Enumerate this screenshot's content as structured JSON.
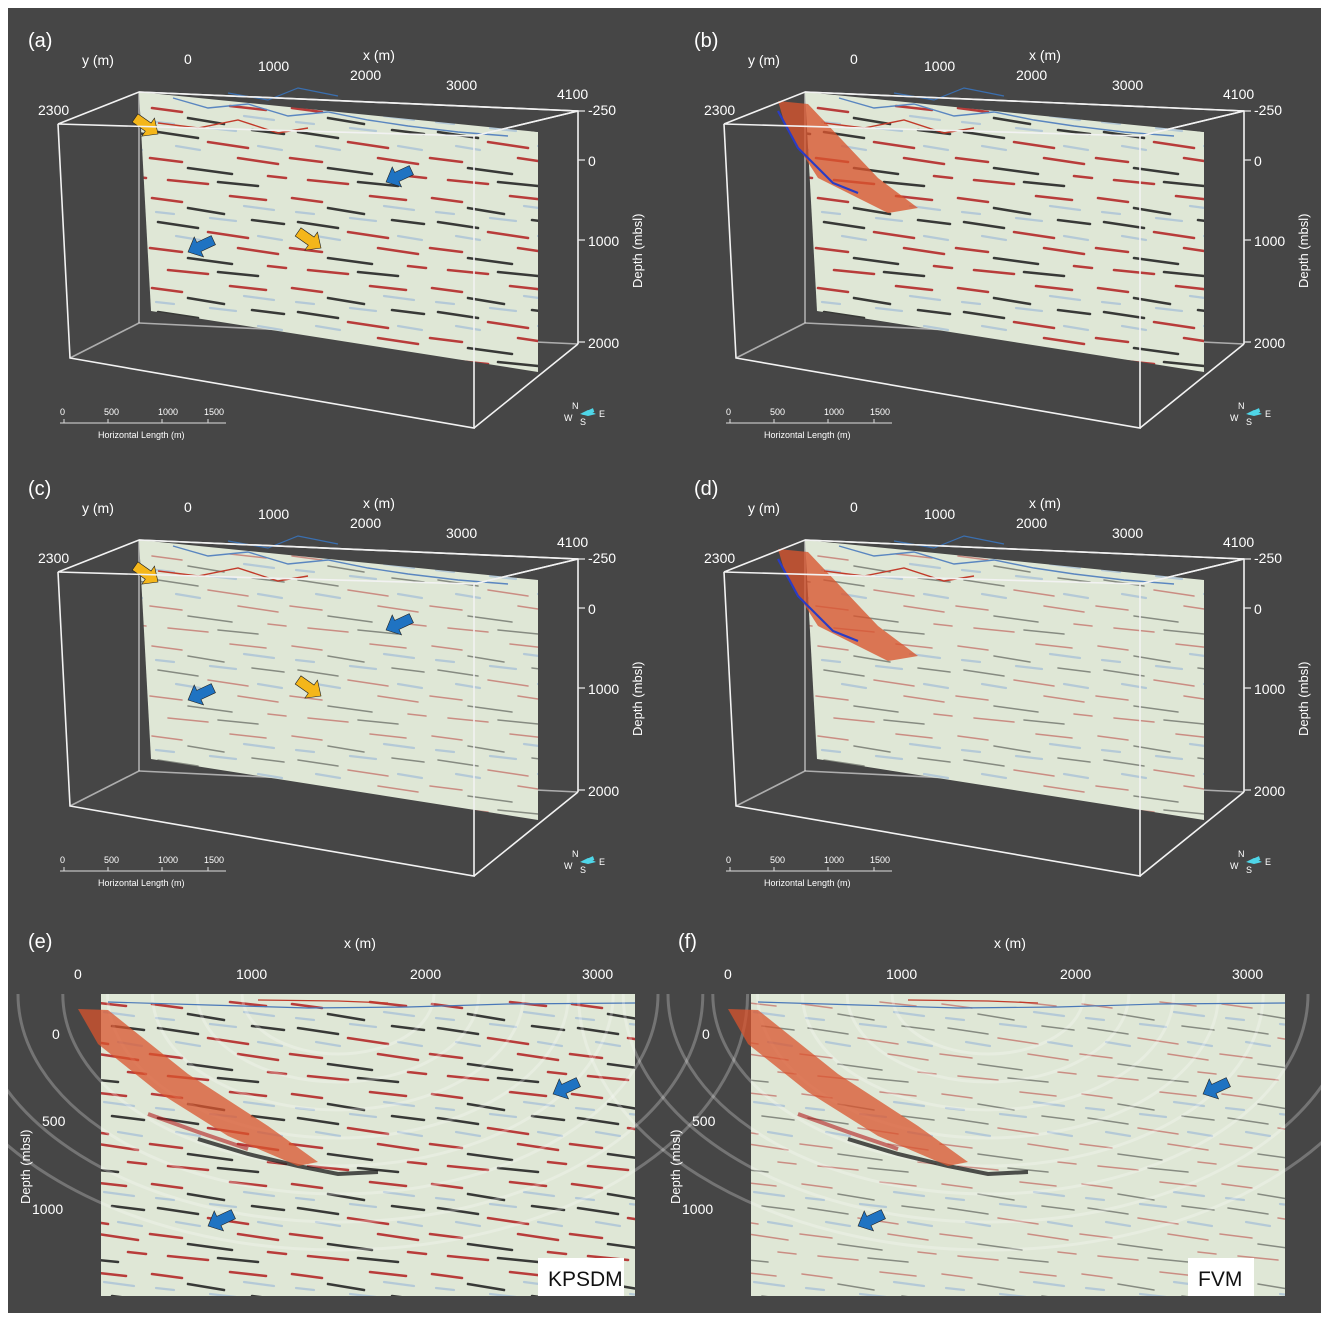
{
  "colors": {
    "background": "#464646",
    "seismic_positive": "#b21e1e",
    "seismic_negative": "#1a1a1a",
    "seismic_bg": "#dfe7d6",
    "fault_plane": "#d9542e",
    "arrow_yellow": "#f4b61a",
    "arrow_blue": "#1f73c2"
  },
  "panels3d": [
    {
      "label": "(a)",
      "y_axis": "y (m)",
      "x_axis": "x (m)",
      "depth_axis": "Depth (mbsl)",
      "x_ticks": [
        "0",
        "1000",
        "2000",
        "3000",
        "4100"
      ],
      "y_tick": "2300",
      "depth_ticks": [
        "-250",
        "0",
        "1000",
        "2000"
      ],
      "scalebar_ticks": [
        "0",
        "500",
        "1000",
        "1500"
      ],
      "scalebar_label": "Horizontal Length (m)",
      "compass": {
        "n": "N",
        "e": "E",
        "s": "S",
        "w": "W"
      },
      "fault": false,
      "arrows": true,
      "noise": "kpsdm"
    },
    {
      "label": "(b)",
      "y_axis": "y (m)",
      "x_axis": "x (m)",
      "depth_axis": "Depth (mbsl)",
      "x_ticks": [
        "0",
        "1000",
        "2000",
        "3000",
        "4100"
      ],
      "y_tick": "2300",
      "depth_ticks": [
        "-250",
        "0",
        "1000",
        "2000"
      ],
      "scalebar_ticks": [
        "0",
        "500",
        "1000",
        "1500"
      ],
      "scalebar_label": "Horizontal Length (m)",
      "compass": {
        "n": "N",
        "e": "E",
        "s": "S",
        "w": "W"
      },
      "fault": true,
      "arrows": false,
      "noise": "kpsdm"
    },
    {
      "label": "(c)",
      "y_axis": "y (m)",
      "x_axis": "x (m)",
      "depth_axis": "Depth (mbsl)",
      "x_ticks": [
        "0",
        "1000",
        "2000",
        "3000",
        "4100"
      ],
      "y_tick": "2300",
      "depth_ticks": [
        "-250",
        "0",
        "1000",
        "2000"
      ],
      "scalebar_ticks": [
        "0",
        "500",
        "1000",
        "1500"
      ],
      "scalebar_label": "Horizontal Length (m)",
      "compass": {
        "n": "N",
        "e": "E",
        "s": "S",
        "w": "W"
      },
      "fault": false,
      "arrows": true,
      "noise": "fvm"
    },
    {
      "label": "(d)",
      "y_axis": "y (m)",
      "x_axis": "x (m)",
      "depth_axis": "Depth (mbsl)",
      "x_ticks": [
        "0",
        "1000",
        "2000",
        "3000",
        "4100"
      ],
      "y_tick": "2300",
      "depth_ticks": [
        "-250",
        "0",
        "1000",
        "2000"
      ],
      "scalebar_ticks": [
        "0",
        "500",
        "1000",
        "1500"
      ],
      "scalebar_label": "Horizontal Length (m)",
      "compass": {
        "n": "N",
        "e": "E",
        "s": "S",
        "w": "W"
      },
      "fault": true,
      "arrows": false,
      "noise": "fvm"
    }
  ],
  "panels2d": [
    {
      "label": "(e)",
      "x_axis": "x (m)",
      "depth_axis": "Depth (mbsl)",
      "x_ticks": [
        "0",
        "1000",
        "2000",
        "3000"
      ],
      "depth_ticks": [
        "0",
        "500",
        "1000"
      ],
      "method": "KPSDM",
      "noise": "kpsdm"
    },
    {
      "label": "(f)",
      "x_axis": "x (m)",
      "depth_axis": "Depth (mbsl)",
      "x_ticks": [
        "0",
        "1000",
        "2000",
        "3000"
      ],
      "depth_ticks": [
        "0",
        "500",
        "1000"
      ],
      "method": "FVM",
      "noise": "fvm"
    }
  ]
}
